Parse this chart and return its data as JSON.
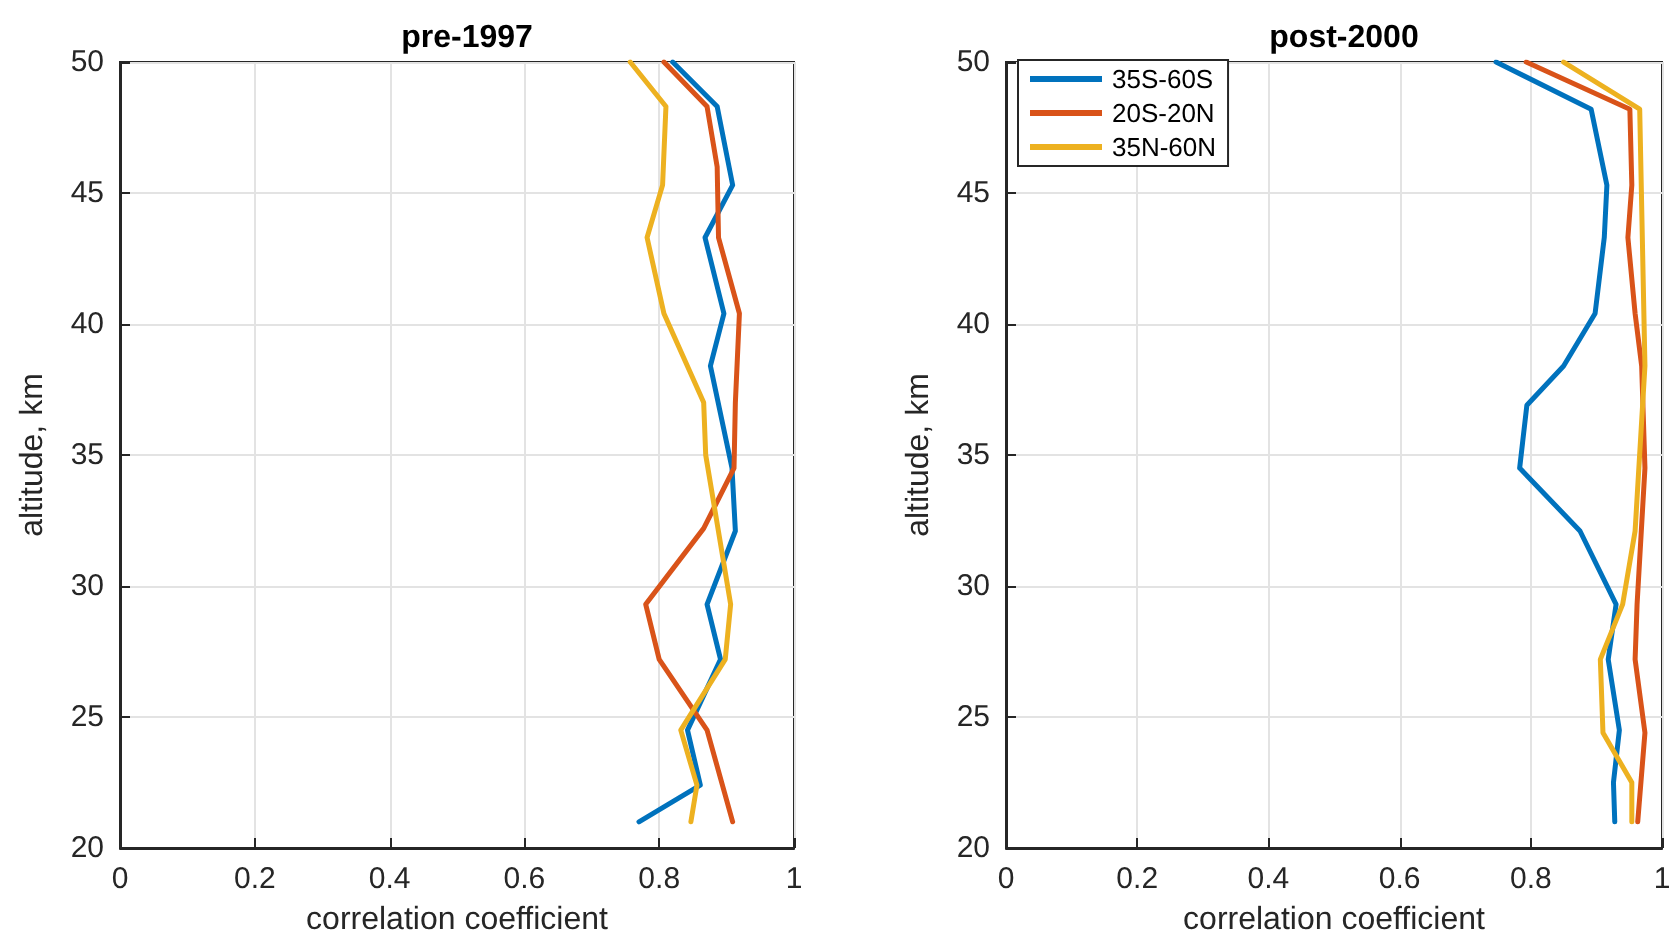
{
  "chart_data": [
    {
      "type": "line",
      "title": "pre-1997",
      "xlabel": "correlation coefficient",
      "ylabel": "altitude, km",
      "xlim": [
        0,
        1
      ],
      "xticks": [
        0,
        0.2,
        0.4,
        0.6,
        0.8,
        1
      ],
      "ylim": [
        20,
        50
      ],
      "yticks": [
        20,
        25,
        30,
        35,
        40,
        45,
        50
      ],
      "grid": true,
      "legend": false,
      "line_style": "solid",
      "series": [
        {
          "color": "#0072bd",
          "x": [
            0.77,
            0.861,
            0.842,
            0.891,
            0.871,
            0.913,
            0.908,
            0.876,
            0.896,
            0.868,
            0.909,
            0.886,
            0.82
          ],
          "values": [
            21,
            22.4,
            24.5,
            27.2,
            29.3,
            32.1,
            34.5,
            38.4,
            40.4,
            43.3,
            45.3,
            48.3,
            50
          ]
        },
        {
          "color": "#d95319",
          "x": [
            0.909,
            0.871,
            0.8,
            0.78,
            0.866,
            0.911,
            0.913,
            0.919,
            0.888,
            0.886,
            0.871,
            0.807
          ],
          "values": [
            21,
            24.5,
            27.2,
            29.3,
            32.2,
            34.5,
            37,
            40.4,
            43.3,
            46,
            48.3,
            50
          ]
        },
        {
          "color": "#edb120",
          "x": [
            0.847,
            0.856,
            0.832,
            0.898,
            0.906,
            0.869,
            0.866,
            0.807,
            0.782,
            0.805,
            0.81,
            0.757
          ],
          "values": [
            21,
            22.4,
            24.5,
            27.2,
            29.3,
            35,
            37,
            40.4,
            43.3,
            45.3,
            48.3,
            50
          ]
        }
      ]
    },
    {
      "type": "line",
      "title": "post-2000",
      "xlabel": "correlation coefficient",
      "ylabel": "altitude, km",
      "xlim": [
        0,
        1
      ],
      "xticks": [
        0,
        0.2,
        0.4,
        0.6,
        0.8,
        1
      ],
      "ylim": [
        20,
        50
      ],
      "yticks": [
        20,
        25,
        30,
        35,
        40,
        45,
        50
      ],
      "grid": true,
      "legend": "top left",
      "line_style": "solid",
      "series": [
        {
          "name": "35S-60S",
          "color": "#0072bd",
          "x": [
            0.928,
            0.926,
            0.935,
            0.918,
            0.93,
            0.875,
            0.783,
            0.794,
            0.85,
            0.898,
            0.912,
            0.916,
            0.892,
            0.747
          ],
          "values": [
            21,
            22.5,
            24.5,
            27.2,
            29.3,
            32.1,
            34.5,
            36.9,
            38.4,
            40.4,
            43.3,
            45.3,
            48.2,
            50
          ]
        },
        {
          "name": "20S-20N",
          "color": "#d95319",
          "x": [
            0.963,
            0.974,
            0.959,
            0.962,
            0.974,
            0.969,
            0.959,
            0.948,
            0.954,
            0.951,
            0.793
          ],
          "values": [
            21,
            24.4,
            27.2,
            29.3,
            34.5,
            38.4,
            40.4,
            43.3,
            45.3,
            48.2,
            50
          ]
        },
        {
          "name": "35N-60N",
          "color": "#edb120",
          "x": [
            0.954,
            0.954,
            0.91,
            0.906,
            0.94,
            0.959,
            0.974,
            0.966,
            0.85
          ],
          "values": [
            21,
            22.5,
            24.4,
            27.2,
            29.3,
            32.1,
            38.4,
            48.2,
            50
          ]
        }
      ]
    }
  ]
}
